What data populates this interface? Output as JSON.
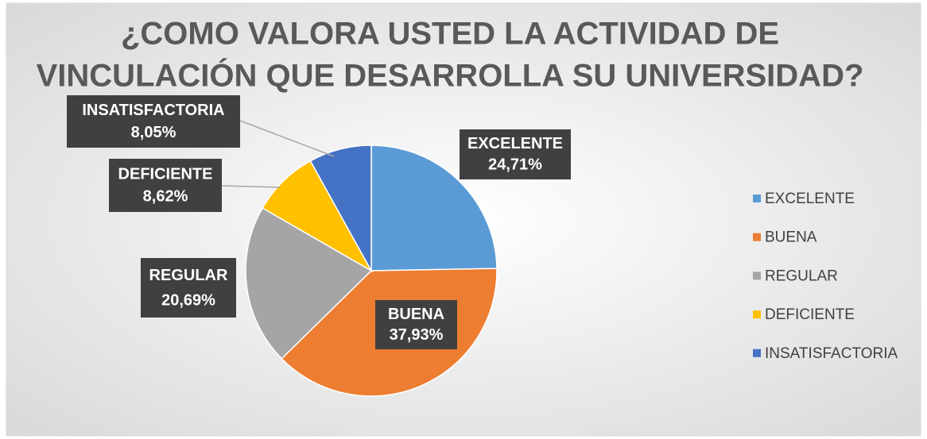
{
  "chart_data": {
    "type": "pie",
    "title": [
      "¿COMO VALORA USTED LA ACTIVIDAD DE",
      "VINCULACIÓN QUE DESARROLLA SU UNIVERSIDAD?"
    ],
    "categories": [
      "EXCELENTE",
      "BUENA",
      "REGULAR",
      "DEFICIENTE",
      "INSATISFACTORIA"
    ],
    "values": [
      24.71,
      37.93,
      20.69,
      8.62,
      8.05
    ],
    "value_labels": [
      "24,71%",
      "37,93%",
      "20,69%",
      "8,62%",
      "8,05%"
    ],
    "colors": [
      "#5b9bd5",
      "#ed7d31",
      "#a5a5a5",
      "#ffc000",
      "#4472c4"
    ],
    "legend": "right"
  }
}
